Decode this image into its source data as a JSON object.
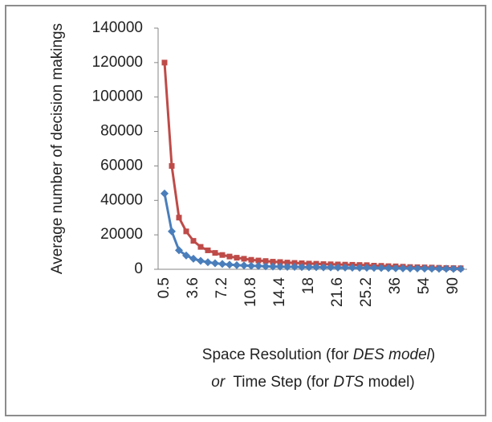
{
  "chart_data": {
    "type": "line",
    "ylabel": "Average number of decision makings",
    "xlabel": [
      "Space Resolution (for ",
      "DES model",
      ")"
    ],
    "xlabel2": [
      "or",
      "  Time Step (for ",
      "DTS",
      " model)"
    ],
    "categories": [
      "0.5",
      null,
      null,
      null,
      "3.6",
      null,
      null,
      null,
      "7.2",
      null,
      null,
      null,
      "10.8",
      null,
      null,
      null,
      "14.4",
      null,
      null,
      null,
      "18",
      null,
      null,
      null,
      "21.6",
      null,
      null,
      null,
      "25.2",
      null,
      null,
      null,
      "36",
      null,
      null,
      null,
      "54",
      null,
      null,
      null,
      "90",
      null
    ],
    "series": [
      {
        "name": "DTS",
        "color": "#be4b48",
        "marker": "square",
        "values": [
          120000,
          60000,
          30000,
          22000,
          16500,
          13000,
          11000,
          9500,
          8300,
          7400,
          6700,
          6100,
          5500,
          5100,
          4800,
          4400,
          4200,
          3900,
          3700,
          3500,
          3300,
          3200,
          3000,
          2900,
          2800,
          2700,
          2600,
          2500,
          2400,
          2100,
          2000,
          1800,
          1700,
          1500,
          1300,
          1200,
          1100,
          1000,
          860,
          750,
          670,
          600
        ]
      },
      {
        "name": "DES",
        "color": "#4a7ebb",
        "marker": "diamond",
        "values": [
          44000,
          22000,
          11000,
          8000,
          6100,
          4900,
          4100,
          3500,
          3100,
          2700,
          2400,
          2200,
          2000,
          1900,
          1700,
          1600,
          1500,
          1400,
          1400,
          1300,
          1200,
          1200,
          1100,
          1100,
          1000,
          980,
          940,
          900,
          870,
          790,
          730,
          670,
          610,
          550,
          490,
          440,
          410,
          370,
          310,
          280,
          240,
          220
        ]
      }
    ],
    "ylim": [
      0,
      140000
    ],
    "yticks": [
      0,
      20000,
      40000,
      60000,
      80000,
      100000,
      120000,
      140000
    ],
    "grid": false
  }
}
